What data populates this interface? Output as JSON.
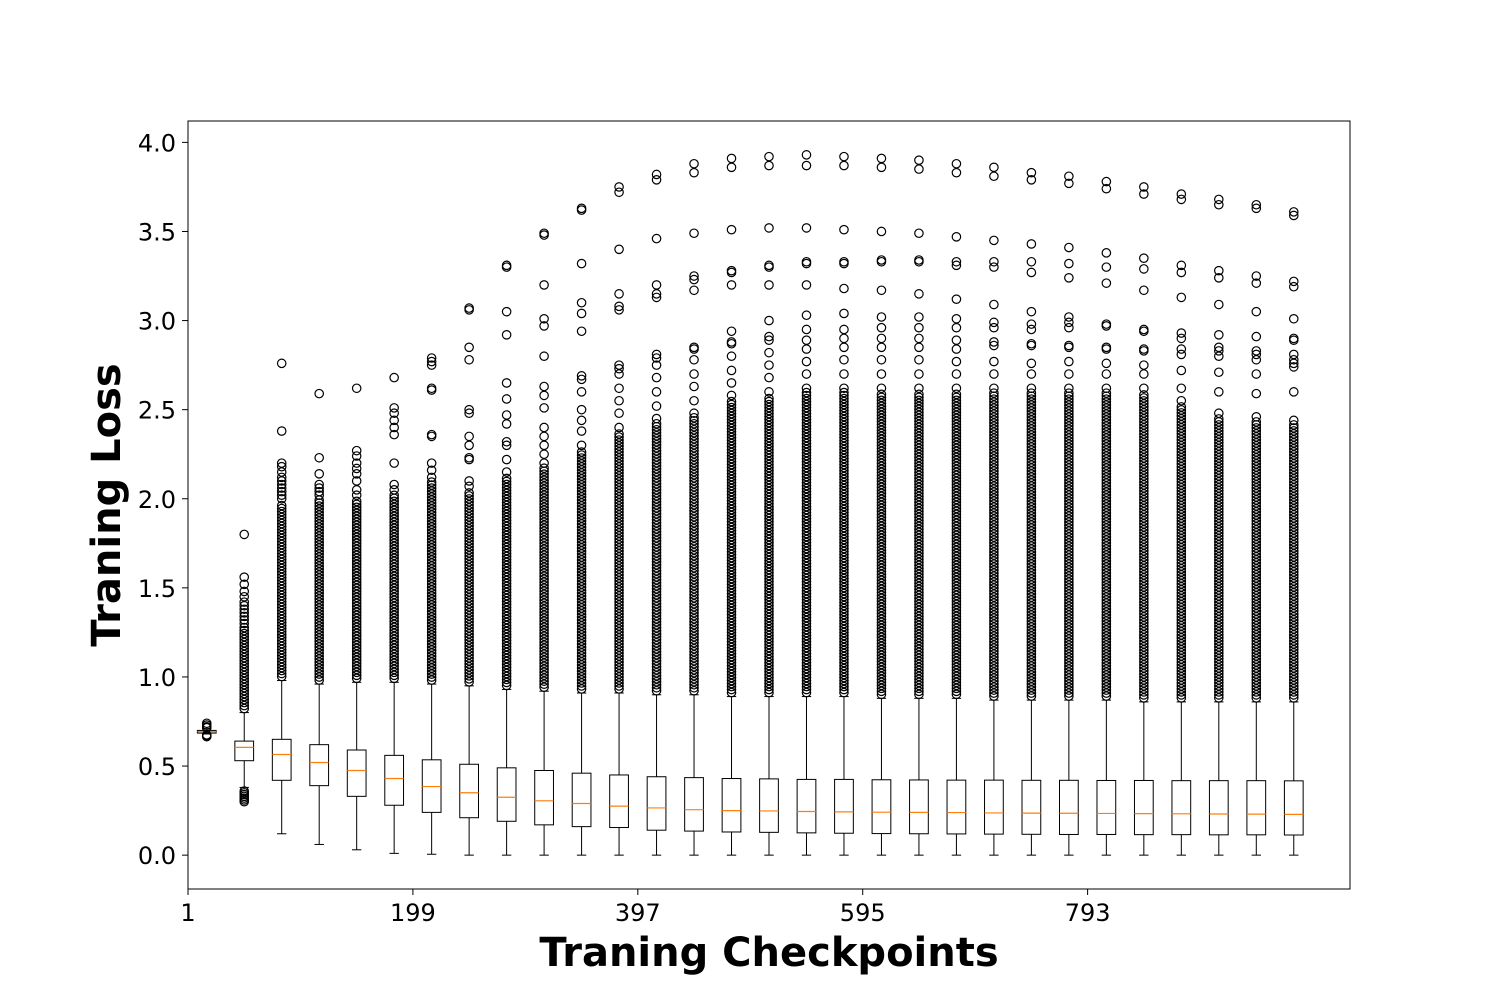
{
  "chart_data": {
    "type": "box",
    "title": "",
    "xlabel": "Traning Checkpoints",
    "ylabel": "Traning Loss",
    "ylim": [
      -0.19,
      4.12
    ],
    "xlim": [
      0.5,
      31.5
    ],
    "grid": false,
    "legend": "none",
    "colors": {
      "box": "#000000",
      "median": "#ff7f0e",
      "flier": "#000000",
      "background": "#ffffff"
    },
    "y_ticks": [
      "0.0",
      "0.5",
      "1.0",
      "1.5",
      "2.0",
      "2.5",
      "3.0",
      "3.5",
      "4.0"
    ],
    "y_tick_values": [
      0,
      0.5,
      1.0,
      1.5,
      2.0,
      2.5,
      3.0,
      3.5,
      4.0
    ],
    "x_ticks": [
      "1",
      "199",
      "397",
      "595",
      "793"
    ],
    "x_tick_positions": [
      0.5,
      6.5,
      12.5,
      18.5,
      24.5
    ],
    "boxes": [
      {
        "pos": 1,
        "whislo": 0.68,
        "q1": 0.685,
        "med": 0.693,
        "q3": 0.7,
        "whishi": 0.71,
        "fliers_low": [
          0.665,
          0.67,
          0.675
        ],
        "fliers_high": [
          0.715,
          0.72,
          0.73,
          0.74
        ]
      },
      {
        "pos": 2,
        "whislo": 0.38,
        "q1": 0.53,
        "med": 0.605,
        "q3": 0.64,
        "whishi": 0.8,
        "fliers_low": [
          0.3,
          0.31,
          0.32,
          0.33,
          0.34,
          0.35,
          0.36
        ],
        "fliers_high": [
          1.8,
          1.56,
          1.52,
          1.48,
          1.45,
          1.42,
          1.4,
          1.38,
          1.36,
          1.34,
          1.32,
          1.3
        ]
      },
      {
        "pos": 3,
        "whislo": 0.12,
        "q1": 0.42,
        "med": 0.565,
        "q3": 0.65,
        "whishi": 0.98,
        "fliers_high": [
          2.76,
          2.38,
          2.2,
          2.18,
          2.15,
          2.12,
          2.1,
          2.08,
          2.06,
          2.04,
          2.02,
          2.0
        ]
      },
      {
        "pos": 4,
        "whislo": 0.06,
        "q1": 0.39,
        "med": 0.52,
        "q3": 0.62,
        "whishi": 0.96,
        "fliers_high": [
          2.59,
          2.23,
          2.14,
          2.08,
          2.06,
          2.04,
          2.02
        ]
      },
      {
        "pos": 5,
        "whislo": 0.03,
        "q1": 0.33,
        "med": 0.475,
        "q3": 0.59,
        "whishi": 0.97,
        "fliers_high": [
          2.62,
          2.27,
          2.24,
          2.2,
          2.17,
          2.14,
          2.1,
          2.05,
          2.02
        ]
      },
      {
        "pos": 6,
        "whislo": 0.01,
        "q1": 0.28,
        "med": 0.43,
        "q3": 0.56,
        "whishi": 0.97,
        "fliers_high": [
          2.68,
          2.51,
          2.48,
          2.44,
          2.4,
          2.36,
          2.2,
          2.08,
          2.05
        ]
      },
      {
        "pos": 7,
        "whislo": 0.005,
        "q1": 0.24,
        "med": 0.385,
        "q3": 0.535,
        "whishi": 0.96,
        "fliers_high": [
          2.79,
          2.77,
          2.75,
          2.62,
          2.61,
          2.36,
          2.35,
          2.2,
          2.16,
          2.12
        ]
      },
      {
        "pos": 8,
        "whislo": 0.0,
        "q1": 0.21,
        "med": 0.35,
        "q3": 0.51,
        "whishi": 0.95,
        "fliers_high": [
          3.07,
          3.06,
          2.85,
          2.78,
          2.5,
          2.48,
          2.35,
          2.3,
          2.23,
          2.22,
          2.1,
          2.07
        ]
      },
      {
        "pos": 9,
        "whislo": 0.0,
        "q1": 0.19,
        "med": 0.325,
        "q3": 0.49,
        "whishi": 0.93,
        "fliers_high": [
          3.31,
          3.3,
          3.05,
          2.92,
          2.65,
          2.56,
          2.47,
          2.42,
          2.32,
          2.3,
          2.22,
          2.15
        ]
      },
      {
        "pos": 10,
        "whislo": 0.0,
        "q1": 0.17,
        "med": 0.305,
        "q3": 0.475,
        "whishi": 0.92,
        "fliers_high": [
          3.49,
          3.48,
          3.2,
          3.01,
          2.97,
          2.8,
          2.63,
          2.58,
          2.51,
          2.4,
          2.35,
          2.3,
          2.25,
          2.2
        ]
      },
      {
        "pos": 11,
        "whislo": 0.0,
        "q1": 0.16,
        "med": 0.29,
        "q3": 0.46,
        "whishi": 0.91,
        "fliers_high": [
          3.63,
          3.62,
          3.32,
          3.1,
          3.04,
          2.94,
          2.69,
          2.67,
          2.6,
          2.5,
          2.44,
          2.38,
          2.3
        ]
      },
      {
        "pos": 12,
        "whislo": 0.0,
        "q1": 0.155,
        "med": 0.275,
        "q3": 0.45,
        "whishi": 0.91,
        "fliers_high": [
          3.75,
          3.72,
          3.4,
          3.15,
          3.08,
          3.06,
          2.75,
          2.73,
          2.7,
          2.62,
          2.55,
          2.48,
          2.4
        ]
      },
      {
        "pos": 13,
        "whislo": 0.0,
        "q1": 0.14,
        "med": 0.265,
        "q3": 0.44,
        "whishi": 0.9,
        "fliers_high": [
          3.82,
          3.79,
          3.46,
          3.2,
          3.15,
          3.13,
          2.81,
          2.79,
          2.75,
          2.68,
          2.6,
          2.52,
          2.45
        ]
      },
      {
        "pos": 14,
        "whislo": 0.0,
        "q1": 0.135,
        "med": 0.255,
        "q3": 0.435,
        "whishi": 0.9,
        "fliers_high": [
          3.88,
          3.83,
          3.49,
          3.25,
          3.23,
          3.17,
          2.85,
          2.84,
          2.78,
          2.7,
          2.63,
          2.55,
          2.48
        ]
      },
      {
        "pos": 15,
        "whislo": 0.0,
        "q1": 0.13,
        "med": 0.25,
        "q3": 0.43,
        "whishi": 0.89,
        "fliers_high": [
          3.91,
          3.86,
          3.51,
          3.28,
          3.27,
          3.2,
          2.94,
          2.88,
          2.87,
          2.8,
          2.72,
          2.65,
          2.58
        ]
      },
      {
        "pos": 16,
        "whislo": 0.0,
        "q1": 0.128,
        "med": 0.248,
        "q3": 0.428,
        "whishi": 0.89,
        "fliers_high": [
          3.92,
          3.87,
          3.52,
          3.31,
          3.3,
          3.2,
          3.0,
          2.91,
          2.89,
          2.82,
          2.75,
          2.68,
          2.6
        ]
      },
      {
        "pos": 17,
        "whislo": 0.0,
        "q1": 0.125,
        "med": 0.245,
        "q3": 0.425,
        "whishi": 0.89,
        "fliers_high": [
          3.93,
          3.87,
          3.52,
          3.33,
          3.32,
          3.2,
          3.03,
          2.95,
          2.89,
          2.84,
          2.77,
          2.7,
          2.62
        ]
      },
      {
        "pos": 18,
        "whislo": 0.0,
        "q1": 0.123,
        "med": 0.243,
        "q3": 0.425,
        "whishi": 0.89,
        "fliers_high": [
          3.92,
          3.87,
          3.51,
          3.33,
          3.32,
          3.18,
          3.04,
          2.95,
          2.9,
          2.85,
          2.78,
          2.7,
          2.62
        ]
      },
      {
        "pos": 19,
        "whislo": 0.0,
        "q1": 0.121,
        "med": 0.241,
        "q3": 0.423,
        "whishi": 0.88,
        "fliers_high": [
          3.91,
          3.86,
          3.5,
          3.34,
          3.33,
          3.17,
          3.02,
          2.96,
          2.9,
          2.85,
          2.78,
          2.7,
          2.62
        ]
      },
      {
        "pos": 20,
        "whislo": 0.0,
        "q1": 0.12,
        "med": 0.24,
        "q3": 0.422,
        "whishi": 0.88,
        "fliers_high": [
          3.9,
          3.85,
          3.49,
          3.34,
          3.33,
          3.15,
          3.02,
          2.96,
          2.9,
          2.85,
          2.78,
          2.7,
          2.62
        ]
      },
      {
        "pos": 21,
        "whislo": 0.0,
        "q1": 0.119,
        "med": 0.239,
        "q3": 0.421,
        "whishi": 0.88,
        "fliers_high": [
          3.88,
          3.83,
          3.47,
          3.33,
          3.31,
          3.12,
          3.01,
          2.96,
          2.89,
          2.84,
          2.77,
          2.7,
          2.62
        ]
      },
      {
        "pos": 22,
        "whislo": 0.0,
        "q1": 0.118,
        "med": 0.237,
        "q3": 0.421,
        "whishi": 0.87,
        "fliers_high": [
          3.86,
          3.81,
          3.45,
          3.33,
          3.3,
          3.09,
          2.99,
          2.96,
          2.88,
          2.86,
          2.77,
          2.7,
          2.62
        ]
      },
      {
        "pos": 23,
        "whislo": 0.0,
        "q1": 0.117,
        "med": 0.236,
        "q3": 0.42,
        "whishi": 0.87,
        "fliers_high": [
          3.83,
          3.79,
          3.43,
          3.33,
          3.27,
          3.05,
          2.98,
          2.95,
          2.87,
          2.86,
          2.76,
          2.7,
          2.62
        ]
      },
      {
        "pos": 24,
        "whislo": 0.0,
        "q1": 0.116,
        "med": 0.235,
        "q3": 0.42,
        "whishi": 0.87,
        "fliers_high": [
          3.81,
          3.77,
          3.41,
          3.32,
          3.24,
          3.02,
          2.99,
          2.96,
          2.86,
          2.85,
          2.77,
          2.7,
          2.62
        ]
      },
      {
        "pos": 25,
        "whislo": 0.0,
        "q1": 0.116,
        "med": 0.234,
        "q3": 0.419,
        "whishi": 0.87,
        "fliers_high": [
          3.78,
          3.74,
          3.38,
          3.3,
          3.21,
          2.98,
          2.97,
          2.85,
          2.84,
          2.76,
          2.7,
          2.62
        ]
      },
      {
        "pos": 26,
        "whislo": 0.0,
        "q1": 0.115,
        "med": 0.233,
        "q3": 0.419,
        "whishi": 0.86,
        "fliers_high": [
          3.75,
          3.71,
          3.35,
          3.29,
          3.17,
          2.95,
          2.94,
          2.84,
          2.83,
          2.75,
          2.7,
          2.62
        ]
      },
      {
        "pos": 27,
        "whislo": 0.0,
        "q1": 0.115,
        "med": 0.232,
        "q3": 0.418,
        "whishi": 0.86,
        "fliers_high": [
          3.71,
          3.68,
          3.31,
          3.27,
          3.13,
          2.93,
          2.9,
          2.84,
          2.81,
          2.72,
          2.62,
          2.55
        ]
      },
      {
        "pos": 28,
        "whislo": 0.0,
        "q1": 0.114,
        "med": 0.231,
        "q3": 0.418,
        "whishi": 0.86,
        "fliers_high": [
          3.68,
          3.65,
          3.28,
          3.24,
          3.09,
          2.92,
          2.85,
          2.83,
          2.8,
          2.71,
          2.6,
          2.48
        ]
      },
      {
        "pos": 29,
        "whislo": 0.0,
        "q1": 0.114,
        "med": 0.23,
        "q3": 0.418,
        "whishi": 0.86,
        "fliers_high": [
          3.65,
          3.63,
          3.25,
          3.21,
          3.05,
          2.91,
          2.83,
          2.81,
          2.78,
          2.7,
          2.59,
          2.46
        ]
      },
      {
        "pos": 30,
        "whislo": 0.0,
        "q1": 0.113,
        "med": 0.229,
        "q3": 0.417,
        "whishi": 0.86,
        "fliers_high": [
          3.61,
          3.59,
          3.22,
          3.19,
          3.01,
          2.9,
          2.89,
          2.81,
          2.78,
          2.76,
          2.74,
          2.6,
          2.44
        ]
      }
    ]
  }
}
